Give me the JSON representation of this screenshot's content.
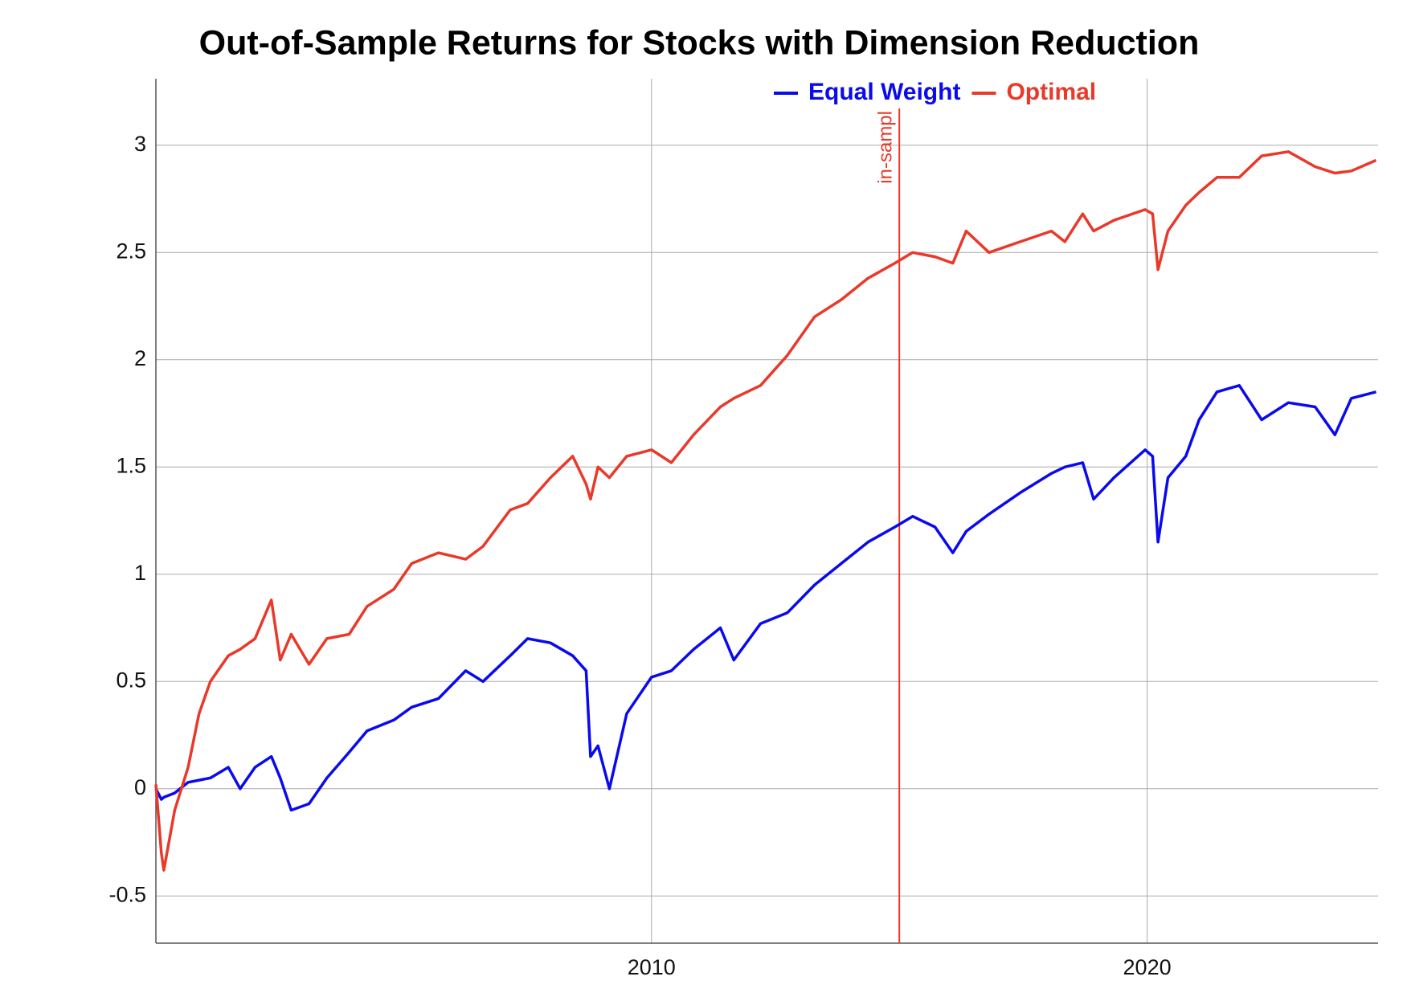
{
  "chart_data": {
    "type": "line",
    "title": "Out-of-Sample Returns for Stocks with Dimension Reduction",
    "x": [
      2000.0,
      2000.11,
      2000.16,
      2000.38,
      2000.65,
      2000.87,
      2001.1,
      2001.46,
      2001.7,
      2002.0,
      2002.33,
      2002.51,
      2002.73,
      2003.09,
      2003.45,
      2003.9,
      2004.26,
      2004.8,
      2005.16,
      2005.7,
      2006.25,
      2006.6,
      2007.15,
      2007.5,
      2007.96,
      2008.41,
      2008.68,
      2008.77,
      2008.92,
      2009.15,
      2009.5,
      2010.0,
      2010.4,
      2010.85,
      2011.39,
      2011.66,
      2012.2,
      2012.74,
      2013.29,
      2013.83,
      2014.37,
      2014.91,
      2015.27,
      2015.72,
      2016.08,
      2016.35,
      2016.81,
      2017.44,
      2018.07,
      2018.34,
      2018.7,
      2018.92,
      2019.33,
      2019.96,
      2020.11,
      2020.22,
      2020.42,
      2020.78,
      2021.05,
      2021.41,
      2021.86,
      2022.31,
      2022.85,
      2023.39,
      2023.79,
      2024.12,
      2024.62
    ],
    "series": [
      {
        "name": "Equal Weight",
        "color": "#0a0aee",
        "values": [
          0.0,
          -0.05,
          -0.04,
          -0.02,
          0.03,
          0.04,
          0.05,
          0.1,
          0.0,
          0.1,
          0.15,
          0.05,
          -0.1,
          -0.07,
          0.05,
          0.17,
          0.27,
          0.32,
          0.38,
          0.42,
          0.55,
          0.5,
          0.62,
          0.7,
          0.68,
          0.62,
          0.55,
          0.15,
          0.2,
          0.0,
          0.35,
          0.52,
          0.55,
          0.65,
          0.75,
          0.6,
          0.77,
          0.82,
          0.95,
          1.05,
          1.15,
          1.22,
          1.27,
          1.22,
          1.1,
          1.2,
          1.28,
          1.38,
          1.47,
          1.5,
          1.52,
          1.35,
          1.45,
          1.58,
          1.55,
          1.15,
          1.45,
          1.55,
          1.72,
          1.85,
          1.88,
          1.72,
          1.8,
          1.78,
          1.65,
          1.82,
          1.85
        ]
      },
      {
        "name": "Optimal",
        "color": "#e8392a",
        "values": [
          0.02,
          -0.3,
          -0.38,
          -0.1,
          0.1,
          0.35,
          0.5,
          0.62,
          0.65,
          0.7,
          0.88,
          0.6,
          0.72,
          0.58,
          0.7,
          0.72,
          0.85,
          0.93,
          1.05,
          1.1,
          1.07,
          1.13,
          1.3,
          1.33,
          1.45,
          1.55,
          1.42,
          1.35,
          1.5,
          1.45,
          1.55,
          1.58,
          1.52,
          1.65,
          1.78,
          1.82,
          1.88,
          2.02,
          2.2,
          2.28,
          2.38,
          2.45,
          2.5,
          2.48,
          2.45,
          2.6,
          2.5,
          2.55,
          2.6,
          2.55,
          2.68,
          2.6,
          2.65,
          2.7,
          2.68,
          2.42,
          2.6,
          2.72,
          2.78,
          2.85,
          2.85,
          2.95,
          2.97,
          2.9,
          2.87,
          2.88,
          2.93
        ]
      }
    ],
    "xlim": [
      2000,
      2024.66
    ],
    "xticks": [
      2010,
      2020
    ],
    "ylim": [
      -0.72,
      3.31
    ],
    "yticks": [
      -0.5,
      0,
      0.5,
      1,
      1.5,
      2,
      2.5,
      3
    ],
    "grid": true,
    "legend": "top",
    "vline": {
      "x": 2015,
      "label": "in-sampl",
      "color": "#e8392a"
    }
  }
}
